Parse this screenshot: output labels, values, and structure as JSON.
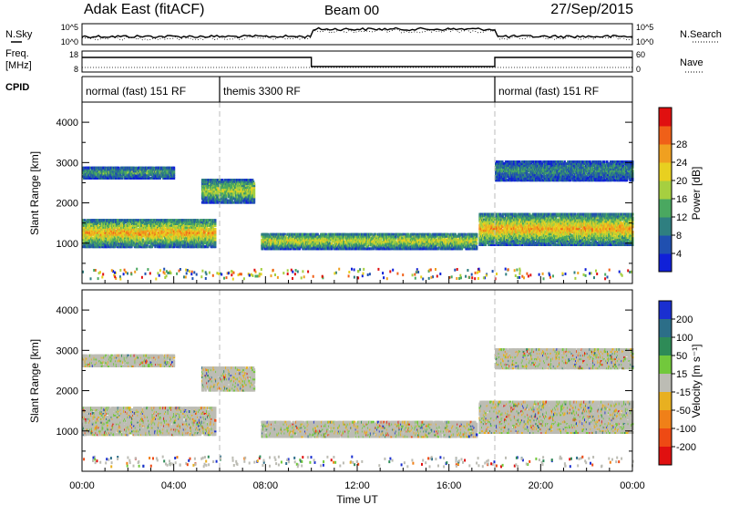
{
  "header": {
    "station": "Adak East (fitACF)",
    "beam": "Beam 00",
    "date": "27/Sep/2015"
  },
  "top_panels": {
    "nsky_label": "N.Sky",
    "nsearch_label": "N.Search",
    "freq_label_1": "Freq.",
    "freq_label_2": "[MHz]",
    "nave_label": "Nave",
    "cpid_label": "CPID",
    "noise_left_ticks": [
      "10^5",
      "10^0"
    ],
    "noise_right_ticks": [
      "10^5",
      "10^0"
    ],
    "freq_left_ticks": [
      "18",
      "8"
    ],
    "freq_right_ticks": [
      "60",
      "0"
    ],
    "cpid_segments": [
      {
        "label": "normal (fast) 151 RF",
        "start_h": 0,
        "end_h": 6
      },
      {
        "label": "themis 3300 RF",
        "start_h": 6,
        "end_h": 18
      },
      {
        "label": "normal (fast) 151 RF",
        "start_h": 18,
        "end_h": 24
      }
    ]
  },
  "chart_data": [
    {
      "type": "heatmap",
      "panel": "power",
      "ylabel": "Slant Range [km]",
      "y_ticks": [
        "1000",
        "2000",
        "3000",
        "4000"
      ],
      "ylim": [
        0,
        4500
      ],
      "xlim": [
        0,
        24
      ],
      "colorbar_label": "Power [dB]",
      "colorbar_ticks": [
        "4",
        "8",
        "12",
        "16",
        "20",
        "24",
        "28"
      ],
      "colorbar_colors": [
        "#1020d8",
        "#2050b0",
        "#2f7f80",
        "#4aa860",
        "#a6cf40",
        "#e8d020",
        "#f0a020",
        "#f06018",
        "#e01010"
      ],
      "echo_bands": [
        {
          "x0": 0,
          "x1": 5.8,
          "r_center": 1250,
          "r_width": 700,
          "level": 0.75
        },
        {
          "x0": 0,
          "x1": 4,
          "r_center": 2750,
          "r_width": 300,
          "level": 0.35
        },
        {
          "x0": 5.2,
          "x1": 7.5,
          "r_center": 2300,
          "r_width": 600,
          "level": 0.55
        },
        {
          "x0": 7.8,
          "x1": 17.2,
          "r_center": 1050,
          "r_width": 400,
          "level": 0.6
        },
        {
          "x0": 17.3,
          "x1": 24,
          "r_center": 1350,
          "r_width": 800,
          "level": 0.75
        },
        {
          "x0": 18,
          "x1": 24,
          "r_center": 2800,
          "r_width": 500,
          "level": 0.3
        }
      ]
    },
    {
      "type": "heatmap",
      "panel": "velocity",
      "ylabel": "Slant Range [km]",
      "y_ticks": [
        "1000",
        "2000",
        "3000",
        "4000"
      ],
      "ylim": [
        0,
        4500
      ],
      "xlim": [
        0,
        24
      ],
      "xlabel": "Time UT",
      "x_ticks": [
        "00:00",
        "04:00",
        "08:00",
        "12:00",
        "16:00",
        "20:00",
        "00:00"
      ],
      "colorbar_label": "Velocity [m s⁻¹]",
      "colorbar_ticks": [
        "200",
        "100",
        "50",
        "15",
        "-15",
        "-50",
        "-100",
        "-200"
      ],
      "colorbar_colors": [
        "#1a2fd0",
        "#2c6e88",
        "#2e8b57",
        "#72c83c",
        "#bcbcb4",
        "#e8b020",
        "#f08018",
        "#ee4a14",
        "#e01010"
      ],
      "echo_bands": [
        {
          "x0": 0,
          "x1": 5.8,
          "r_center": 1250,
          "r_width": 700,
          "level": 0.5
        },
        {
          "x0": 0,
          "x1": 4,
          "r_center": 2750,
          "r_width": 300,
          "level": 0.45
        },
        {
          "x0": 5.2,
          "x1": 7.5,
          "r_center": 2300,
          "r_width": 600,
          "level": 0.6
        },
        {
          "x0": 7.8,
          "x1": 17.2,
          "r_center": 1050,
          "r_width": 400,
          "level": 0.45
        },
        {
          "x0": 17.3,
          "x1": 24,
          "r_center": 1350,
          "r_width": 800,
          "level": 0.5
        },
        {
          "x0": 18,
          "x1": 24,
          "r_center": 2800,
          "r_width": 500,
          "level": 0.45
        }
      ]
    }
  ]
}
